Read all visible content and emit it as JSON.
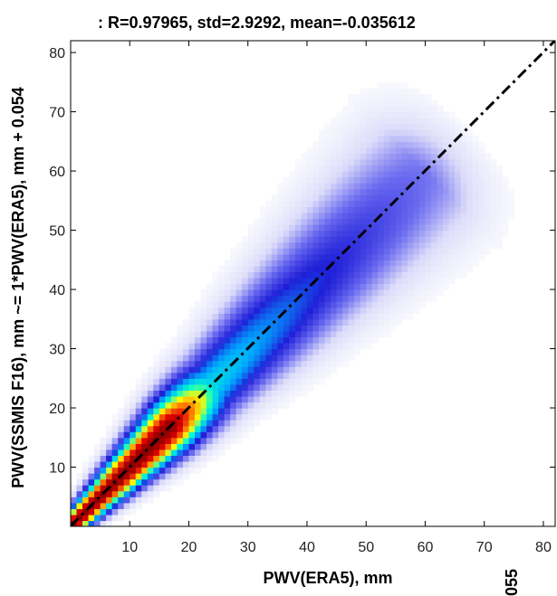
{
  "chart_data": {
    "type": "heatmap",
    "title": ": R=0.97965, std=2.9292, mean=-0.035612",
    "xlabel": "PWV(ERA5), mm",
    "ylabel": "PWV(SSMIS F16), mm ~= 1*PWV(ERA5), mm + 0.054",
    "edge_label": "055",
    "xlim": [
      0,
      82
    ],
    "ylim": [
      0,
      82
    ],
    "x_ticks": [
      10,
      20,
      30,
      40,
      50,
      60,
      70,
      80
    ],
    "y_ticks": [
      10,
      20,
      30,
      40,
      50,
      60,
      70,
      80
    ],
    "grid": false,
    "fit_line": {
      "slope": 1,
      "intercept": 0.054,
      "style": "dash-dot",
      "color": "#000000"
    },
    "density": {
      "description_free_params": true,
      "ridge_start": 0,
      "ridge_end": 66,
      "peak_region_x": [
        0,
        18
      ],
      "colormap": [
        "#ffffff",
        "#dcdcfa",
        "#6b6bf0",
        "#1f1fd8",
        "#00a8ff",
        "#00ffd0",
        "#ffff00",
        "#ff7a00",
        "#e00000",
        "#8a0000"
      ]
    }
  }
}
